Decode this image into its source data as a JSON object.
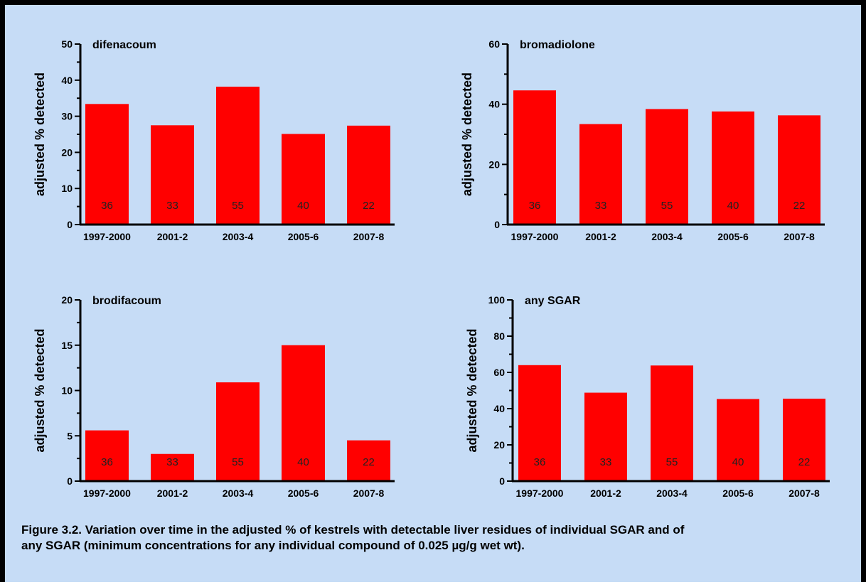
{
  "caption": "Figure 3.2. Variation over time in the adjusted % of kestrels with detectable liver residues of individual SGAR and of any SGAR (minimum concentrations for any individual compound of 0.025 µg/g wet wt).",
  "colors": {
    "bar": "#ff0000",
    "background": "#c6dcf6",
    "axis": "#000000"
  },
  "chart_data": [
    {
      "type": "bar",
      "title": "difenacoum",
      "ylabel": "adjusted % detected",
      "xlabel": "",
      "categories": [
        "1997-2000",
        "2001-2",
        "2003-4",
        "2005-6",
        "2007-8"
      ],
      "values": [
        33.4,
        27.5,
        38.2,
        25.1,
        27.4
      ],
      "bar_labels": [
        "36",
        "33",
        "55",
        "40",
        "22"
      ],
      "ylim": [
        0,
        50
      ],
      "yticks": [
        0,
        10,
        20,
        30,
        40,
        50
      ],
      "minor_yticks": [
        5,
        15,
        25,
        35,
        45
      ]
    },
    {
      "type": "bar",
      "title": "bromadiolone",
      "ylabel": "adjusted % detected",
      "xlabel": "",
      "categories": [
        "1997-2000",
        "2001-2",
        "2003-4",
        "2005-6",
        "2007-8"
      ],
      "values": [
        44.6,
        33.4,
        38.4,
        37.6,
        36.3
      ],
      "bar_labels": [
        "36",
        "33",
        "55",
        "40",
        "22"
      ],
      "ylim": [
        0,
        60
      ],
      "yticks": [
        0,
        20,
        40,
        60
      ],
      "minor_yticks": [
        10,
        30,
        50
      ]
    },
    {
      "type": "bar",
      "title": "brodifacoum",
      "ylabel": "adjusted % detected",
      "xlabel": "",
      "categories": [
        "1997-2000",
        "2001-2",
        "2003-4",
        "2005-6",
        "2007-8"
      ],
      "values": [
        5.6,
        3.0,
        10.9,
        15.0,
        4.5
      ],
      "bar_labels": [
        "36",
        "33",
        "55",
        "40",
        "22"
      ],
      "ylim": [
        0,
        20
      ],
      "yticks": [
        0,
        5,
        10,
        15,
        20
      ],
      "minor_yticks": [
        2.5,
        7.5,
        12.5,
        17.5
      ]
    },
    {
      "type": "bar",
      "title": "any SGAR",
      "ylabel": "adjusted % detected",
      "xlabel": "",
      "categories": [
        "1997-2000",
        "2001-2",
        "2003-4",
        "2005-6",
        "2007-8"
      ],
      "values": [
        64.0,
        48.8,
        63.8,
        45.3,
        45.5
      ],
      "bar_labels": [
        "36",
        "33",
        "55",
        "40",
        "22"
      ],
      "ylim": [
        0,
        100
      ],
      "yticks": [
        0,
        20,
        40,
        60,
        80,
        100
      ],
      "minor_yticks": [
        10,
        30,
        50,
        70,
        90
      ]
    }
  ]
}
